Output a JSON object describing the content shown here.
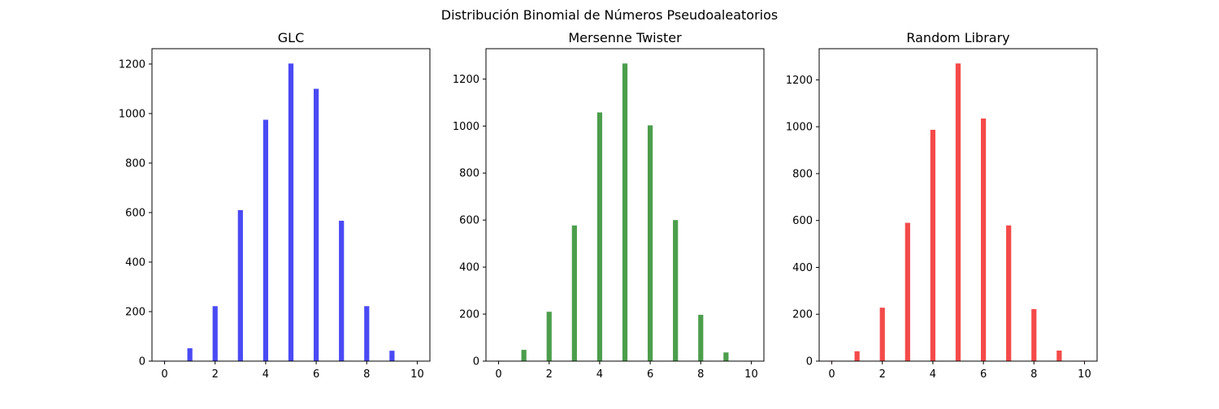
{
  "figure": {
    "suptitle": "Distribución Binomial de Números Pseudoaleatorios"
  },
  "chart_data": [
    {
      "type": "bar",
      "title": "GLC",
      "xlabel": "",
      "ylabel": "",
      "color": "#4a4af4",
      "x": [
        0,
        1,
        2,
        3,
        4,
        5,
        6,
        7,
        8,
        9,
        10
      ],
      "values": [
        2,
        52,
        222,
        610,
        975,
        1202,
        1100,
        567,
        222,
        42,
        1
      ],
      "xlim": [
        -0.5,
        10.5
      ],
      "ylim": [
        0,
        1262
      ],
      "xticks": [
        0,
        2,
        4,
        6,
        8,
        10
      ],
      "xtick_labels": [
        "0",
        "2",
        "4",
        "6",
        "8",
        "10"
      ],
      "yticks": [
        0,
        200,
        400,
        600,
        800,
        1000,
        1200
      ],
      "ytick_labels": [
        "0",
        "200",
        "400",
        "600",
        "800",
        "1000",
        "1200"
      ],
      "grid": false,
      "legend": "none"
    },
    {
      "type": "bar",
      "title": "Mersenne Twister",
      "xlabel": "",
      "ylabel": "",
      "color": "#4c9e4c",
      "x": [
        0,
        1,
        2,
        3,
        4,
        5,
        6,
        7,
        8,
        9,
        10
      ],
      "values": [
        2,
        48,
        210,
        577,
        1058,
        1266,
        1003,
        600,
        197,
        37,
        2
      ],
      "xlim": [
        -0.5,
        10.5
      ],
      "ylim": [
        0,
        1329
      ],
      "xticks": [
        0,
        2,
        4,
        6,
        8,
        10
      ],
      "xtick_labels": [
        "0",
        "2",
        "4",
        "6",
        "8",
        "10"
      ],
      "yticks": [
        0,
        200,
        400,
        600,
        800,
        1000,
        1200
      ],
      "ytick_labels": [
        "0",
        "200",
        "400",
        "600",
        "800",
        "1000",
        "1200"
      ],
      "grid": false,
      "legend": "none"
    },
    {
      "type": "bar",
      "title": "Random Library",
      "xlabel": "",
      "ylabel": "",
      "color": "#f44a4a",
      "x": [
        0,
        1,
        2,
        3,
        4,
        5,
        6,
        7,
        8,
        9,
        10
      ],
      "values": [
        2,
        42,
        228,
        590,
        987,
        1270,
        1035,
        579,
        222,
        45,
        2
      ],
      "xlim": [
        -0.5,
        10.5
      ],
      "ylim": [
        0,
        1333
      ],
      "xticks": [
        0,
        2,
        4,
        6,
        8,
        10
      ],
      "xtick_labels": [
        "0",
        "2",
        "4",
        "6",
        "8",
        "10"
      ],
      "yticks": [
        0,
        200,
        400,
        600,
        800,
        1000,
        1200
      ],
      "ytick_labels": [
        "0",
        "200",
        "400",
        "600",
        "800",
        "1000",
        "1200"
      ],
      "grid": false,
      "legend": "none"
    }
  ]
}
